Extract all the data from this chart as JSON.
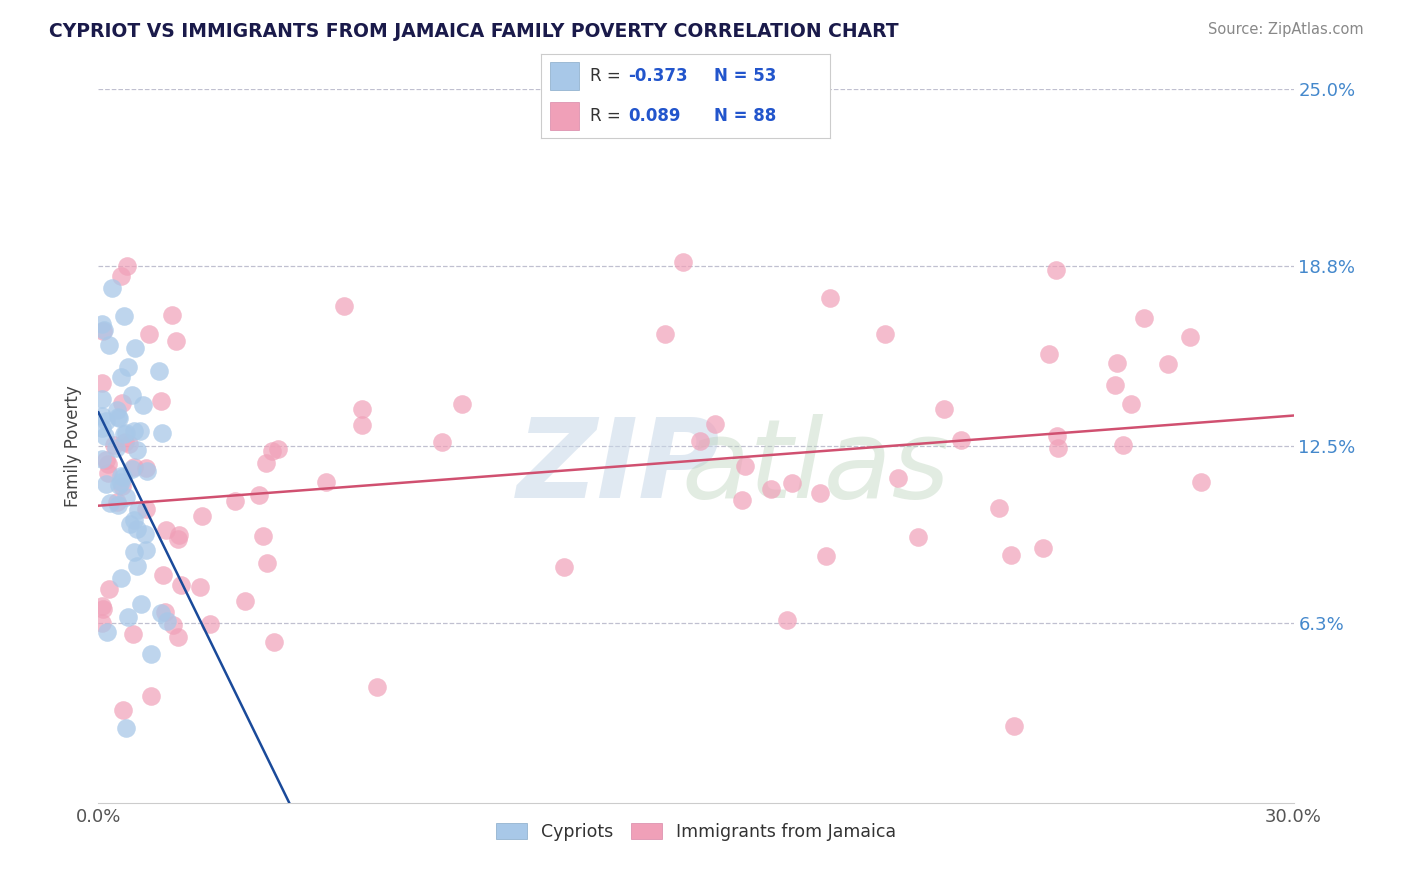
{
  "title": "CYPRIOT VS IMMIGRANTS FROM JAMAICA FAMILY POVERTY CORRELATION CHART",
  "source": "Source: ZipAtlas.com",
  "ylabel": "Family Poverty",
  "xlim": [
    0.0,
    0.3
  ],
  "ylim": [
    0.0,
    0.25
  ],
  "x_tick_labels": [
    "0.0%",
    "30.0%"
  ],
  "y_tick_labels": [
    "6.3%",
    "12.5%",
    "18.8%",
    "25.0%"
  ],
  "y_tick_values": [
    0.063,
    0.125,
    0.188,
    0.25
  ],
  "legend_labels": [
    "Cypriots",
    "Immigrants from Jamaica"
  ],
  "cypriot_color": "#a8c8e8",
  "jamaica_color": "#f0a0b8",
  "cypriot_line_color": "#1a4a9a",
  "jamaica_line_color": "#d05070",
  "background_color": "#ffffff",
  "grid_color": "#c0c0d0",
  "watermark_zip_color": "#c8d8e8",
  "watermark_atlas_color": "#b8ccc0"
}
